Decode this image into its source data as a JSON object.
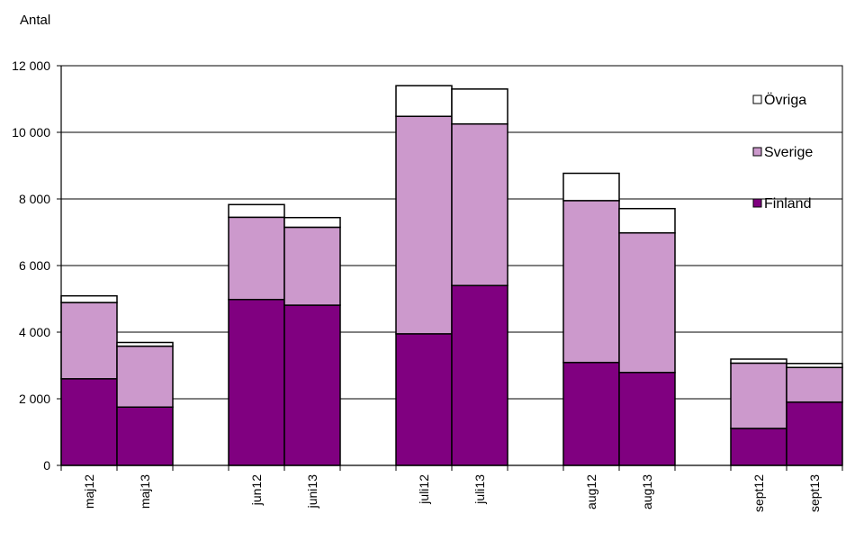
{
  "chart_data": {
    "type": "bar",
    "stacked": true,
    "ylabel": "Antal",
    "ylim": [
      0,
      12000
    ],
    "yticks": [
      0,
      2000,
      4000,
      6000,
      8000,
      10000,
      12000
    ],
    "ytick_labels": [
      "0",
      "2 000",
      "4 000",
      "6 000",
      "8 000",
      "10 000",
      "12 000"
    ],
    "grid": "horizontal",
    "legend_position": "top-right",
    "categories": [
      "maj12",
      "maj13",
      "jun12",
      "juni13",
      "juli12",
      "juli13",
      "aug12",
      "aug13",
      "sept12",
      "sept13"
    ],
    "series": [
      {
        "name": "Finland",
        "color": "#800080",
        "values": [
          2600,
          1750,
          4980,
          4810,
          3950,
          5400,
          3090,
          2790,
          1110,
          1900
        ]
      },
      {
        "name": "Sverige",
        "color": "#cc99cc",
        "values": [
          2290,
          1830,
          2470,
          2340,
          6530,
          4850,
          4860,
          4190,
          1960,
          1040
        ]
      },
      {
        "name": "Övriga",
        "color": "#ffffff",
        "values": [
          200,
          110,
          380,
          290,
          920,
          1050,
          820,
          730,
          120,
          120
        ]
      }
    ],
    "legend_order": [
      "Övriga",
      "Sverige",
      "Finland"
    ]
  }
}
